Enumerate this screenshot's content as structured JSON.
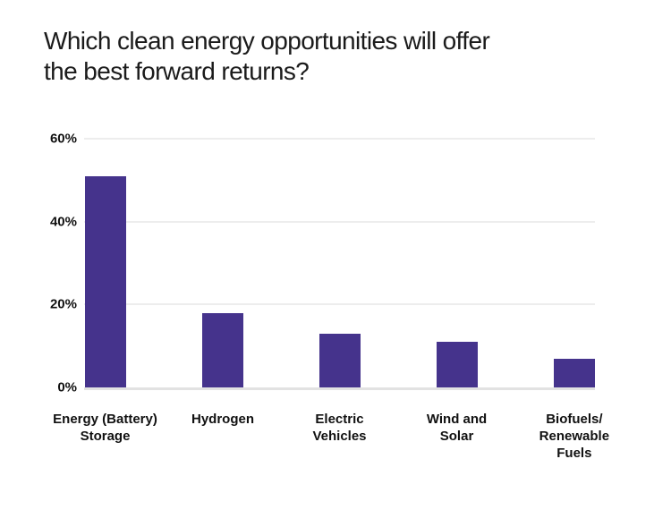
{
  "title": "Which clean energy opportunities will offer\nthe best forward returns?",
  "chart_data": {
    "type": "bar",
    "title": "Which clean energy opportunities will offer the best forward returns?",
    "categories": [
      "Energy (Battery)\nStorage",
      "Hydrogen",
      "Electric\nVehicles",
      "Wind and\nSolar",
      "Biofuels/\nRenewable\nFuels"
    ],
    "values": [
      51,
      18,
      13,
      11,
      7
    ],
    "unit": "%",
    "xlabel": "",
    "ylabel": "",
    "ylim": [
      0,
      60
    ],
    "yticks": [
      {
        "value": 60,
        "label": "60%"
      },
      {
        "value": 40,
        "label": "40%"
      },
      {
        "value": 20,
        "label": "20%"
      },
      {
        "value": 0,
        "label": "0%"
      }
    ],
    "grid": true,
    "legend": false
  },
  "colors": {
    "bar": "#45338C",
    "gridline": "#ededed",
    "baseline": "#e2e2e2",
    "axis_text": "#111111",
    "title_text": "#1b1b1b",
    "background": "#ffffff"
  }
}
